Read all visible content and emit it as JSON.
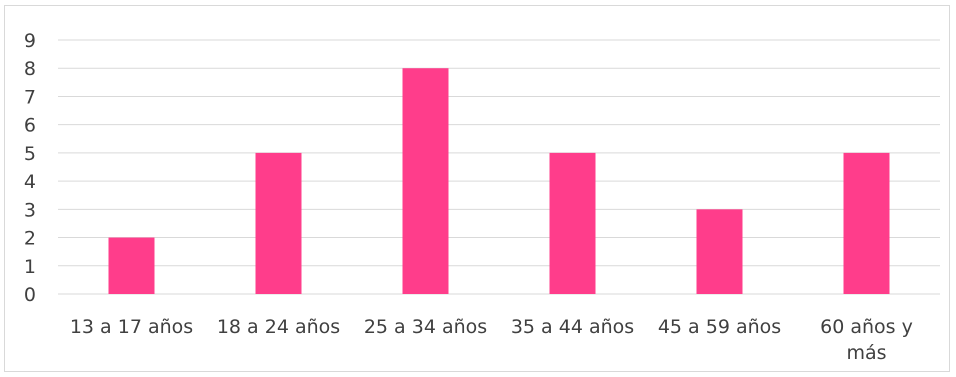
{
  "chart_data": {
    "type": "bar",
    "categories": [
      [
        "13 a 17 años"
      ],
      [
        "18 a 24 años"
      ],
      [
        "25 a 34 años"
      ],
      [
        "35 a 44 años"
      ],
      [
        "45 a 59 años"
      ],
      [
        "60 años y",
        "más"
      ]
    ],
    "values": [
      2,
      5,
      8,
      5,
      3,
      5
    ],
    "title": "",
    "xlabel": "",
    "ylabel": "",
    "ylim": [
      0,
      9
    ],
    "yticks": [
      0,
      1,
      2,
      3,
      4,
      5,
      6,
      7,
      8,
      9
    ],
    "grid": true,
    "legend": "none",
    "colors": {
      "bar": "#FF3D8B",
      "grid": "#D9D9D9",
      "text": "#404040"
    }
  }
}
